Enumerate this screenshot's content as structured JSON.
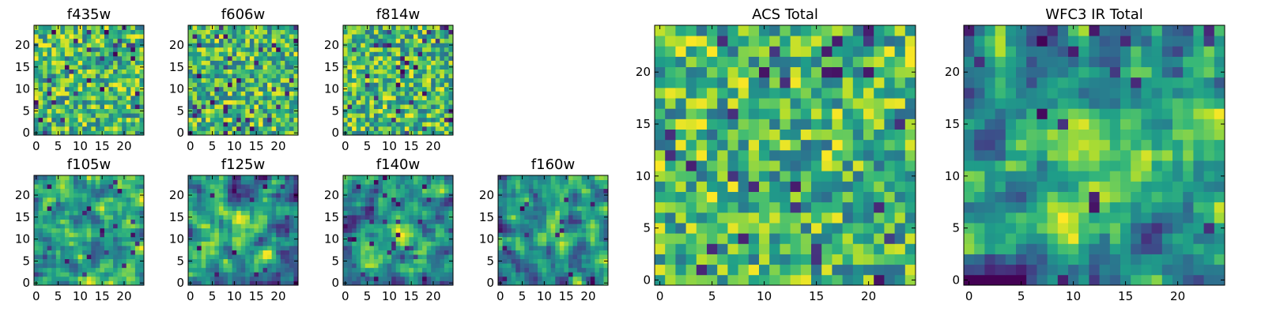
{
  "chart_data": [
    {
      "type": "heatmap",
      "title": "f435w",
      "grid_size": 25,
      "xticks": [
        0,
        5,
        10,
        15,
        20
      ],
      "yticks": [
        0,
        5,
        10,
        15,
        20
      ],
      "xlim": [
        -0.5,
        24.5
      ],
      "ylim": [
        -0.5,
        24.5
      ],
      "colormap": "viridis",
      "pattern": "noise",
      "seed": 11
    },
    {
      "type": "heatmap",
      "title": "f606w",
      "grid_size": 25,
      "xticks": [
        0,
        5,
        10,
        15,
        20
      ],
      "yticks": [
        0,
        5,
        10,
        15,
        20
      ],
      "xlim": [
        -0.5,
        24.5
      ],
      "ylim": [
        -0.5,
        24.5
      ],
      "colormap": "viridis",
      "pattern": "noise",
      "seed": 23
    },
    {
      "type": "heatmap",
      "title": "f814w",
      "grid_size": 25,
      "xticks": [
        0,
        5,
        10,
        15,
        20
      ],
      "yticks": [
        0,
        5,
        10,
        15,
        20
      ],
      "xlim": [
        -0.5,
        24.5
      ],
      "ylim": [
        -0.5,
        24.5
      ],
      "colormap": "viridis",
      "pattern": "noise",
      "seed": 37
    },
    {
      "type": "heatmap",
      "title": "f105w",
      "grid_size": 25,
      "xticks": [
        0,
        5,
        10,
        15,
        20
      ],
      "yticks": [
        0,
        5,
        10,
        15,
        20
      ],
      "xlim": [
        -0.5,
        24.5
      ],
      "ylim": [
        -0.5,
        24.5
      ],
      "colormap": "viridis",
      "pattern": "smooth",
      "seed": 41
    },
    {
      "type": "heatmap",
      "title": "f125w",
      "grid_size": 25,
      "xticks": [
        0,
        5,
        10,
        15,
        20
      ],
      "yticks": [
        0,
        5,
        10,
        15,
        20
      ],
      "xlim": [
        -0.5,
        24.5
      ],
      "ylim": [
        -0.5,
        24.5
      ],
      "colormap": "viridis",
      "pattern": "smooth_peak",
      "seed": 53
    },
    {
      "type": "heatmap",
      "title": "f140w",
      "grid_size": 25,
      "xticks": [
        0,
        5,
        10,
        15,
        20
      ],
      "yticks": [
        0,
        5,
        10,
        15,
        20
      ],
      "xlim": [
        -0.5,
        24.5
      ],
      "ylim": [
        -0.5,
        24.5
      ],
      "colormap": "viridis",
      "pattern": "smooth_peak",
      "seed": 67
    },
    {
      "type": "heatmap",
      "title": "f160w",
      "grid_size": 25,
      "xticks": [
        0,
        5,
        10,
        15,
        20
      ],
      "yticks": [
        0,
        5,
        10,
        15,
        20
      ],
      "xlim": [
        -0.5,
        24.5
      ],
      "ylim": [
        -0.5,
        24.5
      ],
      "colormap": "viridis",
      "pattern": "smooth_peak",
      "seed": 79
    },
    {
      "type": "heatmap",
      "title": "ACS Total",
      "grid_size": 25,
      "xticks": [
        0,
        5,
        10,
        15,
        20
      ],
      "yticks": [
        0,
        5,
        10,
        15,
        20
      ],
      "xlim": [
        -0.5,
        24.5
      ],
      "ylim": [
        -0.5,
        24.5
      ],
      "colormap": "viridis",
      "pattern": "noise",
      "seed": 83
    },
    {
      "type": "heatmap",
      "title": "WFC3 IR Total",
      "grid_size": 25,
      "xticks": [
        0,
        5,
        10,
        15,
        20
      ],
      "yticks": [
        0,
        5,
        10,
        15,
        20
      ],
      "xlim": [
        -0.5,
        24.5
      ],
      "ylim": [
        -0.5,
        24.5
      ],
      "colormap": "viridis",
      "pattern": "smooth_peak",
      "seed": 97
    }
  ]
}
